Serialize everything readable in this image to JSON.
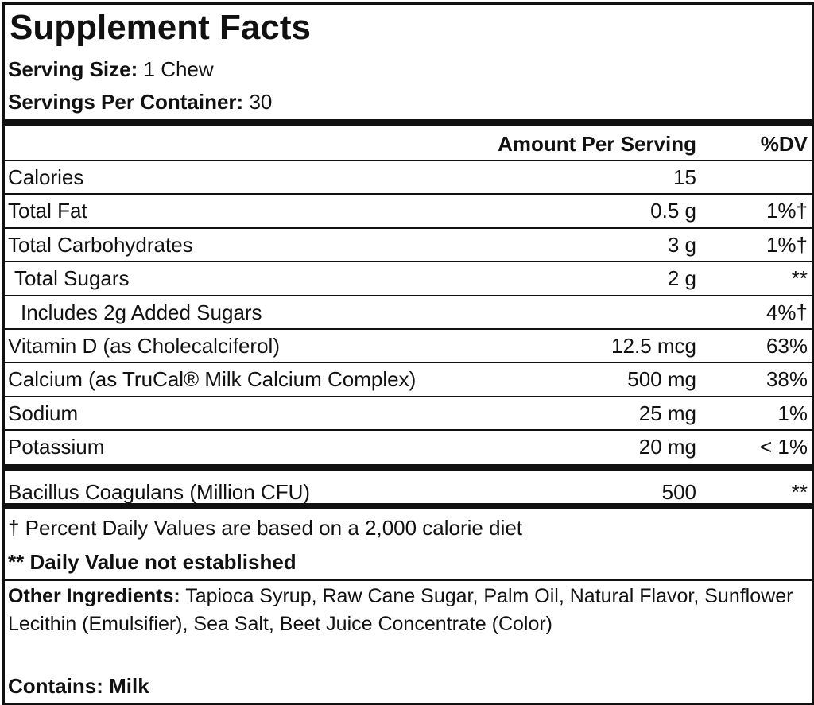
{
  "header": {
    "title": "Supplement Facts",
    "serving_size": {
      "label": "Serving Size:",
      "value": "1 Chew"
    },
    "servings_per_container": {
      "label": "Servings Per Container:",
      "value": 30
    }
  },
  "table": {
    "columns": [
      "Amount Per Serving",
      "%DV"
    ],
    "rows": [
      [
        "Calories",
        15,
        ""
      ],
      [
        "Total Fat",
        "0.5 g",
        "1%†"
      ],
      [
        "Total Carbohydrates",
        "3 g",
        "1%†"
      ],
      [
        "Total Sugars",
        "2 g",
        "**"
      ],
      [
        "Includes 2g Added Sugars",
        "",
        "4%†"
      ],
      [
        "Vitamin D (as Cholecalciferol)",
        "12.5 mcg",
        "63%"
      ],
      [
        "Calcium (as TruCal® Milk Calcium Complex)",
        "500 mg",
        "38%"
      ],
      [
        "Sodium",
        "25 mg",
        "1%"
      ],
      [
        "Potassium",
        "20 mg",
        "< 1%"
      ],
      [
        "Bacillus Coagulans (Million CFU)",
        500,
        "**"
      ]
    ]
  },
  "footnotes": [
    "† Percent Daily Values are based on a 2,000 calorie diet",
    "** Daily Value not established"
  ],
  "other_ingredients": {
    "label": "Other Ingredients:",
    "value": "Tapioca Syrup, Raw Cane Sugar, Palm Oil, Natural Flavor, Sunflower Lecithin (Emulsifier), Sea Salt, Beet Juice Concentrate (Color)"
  },
  "contains": "Contains: Milk"
}
